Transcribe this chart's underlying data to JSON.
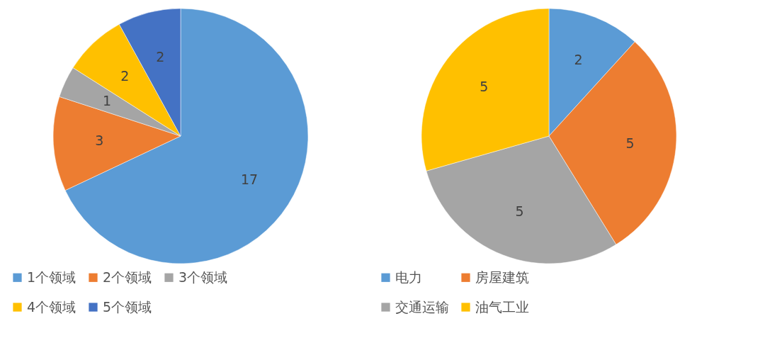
{
  "chart_data": [
    {
      "type": "pie",
      "categories": [
        "1个领域",
        "2个领域",
        "3个领域",
        "4个领域",
        "5个领域"
      ],
      "values": [
        17,
        3,
        1,
        2,
        2
      ],
      "colors": [
        "#5b9bd5",
        "#ed7d31",
        "#a5a5a5",
        "#ffc000",
        "#4472c4"
      ],
      "data_labels": true,
      "legend": "bottom"
    },
    {
      "type": "pie",
      "categories": [
        "电力",
        "房屋建筑",
        "交通运输",
        "油气工业"
      ],
      "values": [
        2,
        5,
        5,
        5
      ],
      "colors": [
        "#5b9bd5",
        "#ed7d31",
        "#a5a5a5",
        "#ffc000"
      ],
      "data_labels": true,
      "legend": "bottom"
    }
  ]
}
